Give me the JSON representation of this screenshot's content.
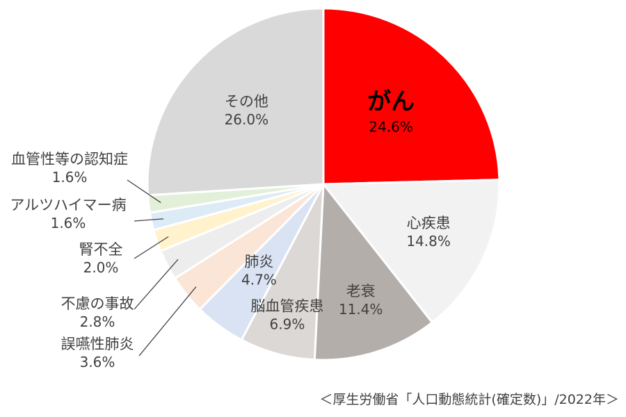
{
  "chart_data": {
    "type": "pie",
    "title": "",
    "slices": [
      {
        "label": "がん",
        "value": 24.6,
        "value_label": "24.6%",
        "color": "#ff0000"
      },
      {
        "label": "心疾患",
        "value": 14.8,
        "value_label": "14.8%",
        "color": "#f2f2f2"
      },
      {
        "label": "老衰",
        "value": 11.4,
        "value_label": "11.4%",
        "color": "#b4aeab"
      },
      {
        "label": "脳血管疾患",
        "value": 6.9,
        "value_label": "6.9%",
        "color": "#dcd8d6"
      },
      {
        "label": "肺炎",
        "value": 4.7,
        "value_label": "4.7%",
        "color": "#dae3f3"
      },
      {
        "label": "誤嚥性肺炎",
        "value": 3.6,
        "value_label": "3.6%",
        "color": "#fbe5d6"
      },
      {
        "label": "不慮の事故",
        "value": 2.8,
        "value_label": "2.8%",
        "color": "#ededed"
      },
      {
        "label": "腎不全",
        "value": 2.0,
        "value_label": "2.0%",
        "color": "#fff2cc"
      },
      {
        "label": "アルツハイマー病",
        "value": 1.6,
        "value_label": "1.6%",
        "color": "#ddebf7"
      },
      {
        "label": "血管性等の認知症",
        "value": 1.6,
        "value_label": "1.6%",
        "color": "#e2f0d9"
      },
      {
        "label": "その他",
        "value": 26.0,
        "value_label": "26.0%",
        "color": "#d9d9d9"
      }
    ],
    "source": "＜厚生労働省「人口動態統計(確定数)」/2022年＞"
  }
}
